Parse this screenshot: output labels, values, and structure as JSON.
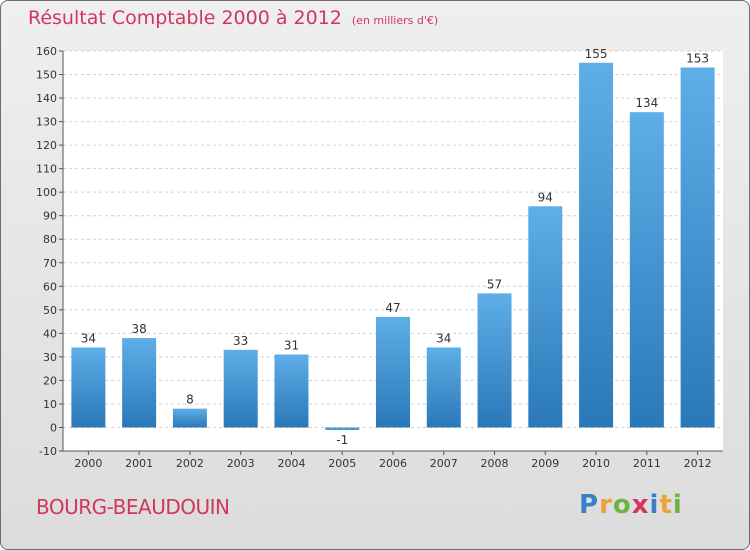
{
  "title": "Résultat Comptable 2000 à 2012",
  "subtitle": "(en milliers d'€)",
  "commune": "BOURG-BEAUDOUIN",
  "brand": {
    "letters": [
      "P",
      "r",
      "o",
      "x",
      "i",
      "t",
      "i"
    ],
    "colors": [
      "#3a7fc5",
      "#e8a33b",
      "#6db33f",
      "#d2365e",
      "#3a7fc5",
      "#e8a33b",
      "#6db33f"
    ]
  },
  "bar_color": "#4c9ede",
  "chart_data": {
    "type": "bar",
    "title": "Résultat Comptable 2000 à 2012",
    "xlabel": "",
    "ylabel": "",
    "categories": [
      "2000",
      "2001",
      "2002",
      "2003",
      "2004",
      "2005",
      "2006",
      "2007",
      "2008",
      "2009",
      "2010",
      "2011",
      "2012"
    ],
    "values": [
      34,
      38,
      8,
      33,
      31,
      -1,
      47,
      34,
      57,
      94,
      155,
      134,
      153
    ],
    "ylim": [
      -10,
      160
    ],
    "yticks": [
      -10,
      0,
      10,
      20,
      30,
      40,
      50,
      60,
      70,
      80,
      90,
      100,
      110,
      120,
      130,
      140,
      150,
      160
    ],
    "grid": true
  }
}
